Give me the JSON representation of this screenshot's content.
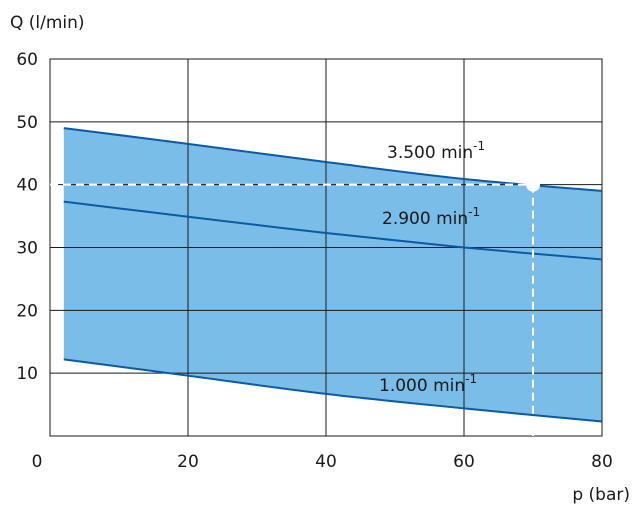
{
  "chart_data": {
    "type": "area",
    "xlabel": "p (bar)",
    "ylabel": "Q (l/min)",
    "xlim": [
      0,
      80
    ],
    "ylim": [
      0,
      60
    ],
    "x_ticks": [
      "0",
      "20",
      "40",
      "60",
      "80"
    ],
    "y_ticks": [
      "10",
      "20",
      "30",
      "40",
      "50",
      "60"
    ],
    "grid": true,
    "series": [
      {
        "name": "3.500 min-1",
        "label_main": "3.500 min",
        "label_sup": "-1",
        "x": [
          2,
          20,
          40,
          60,
          80
        ],
        "y": [
          49,
          46.5,
          43.6,
          40.9,
          39
        ]
      },
      {
        "name": "2.900 min-1",
        "label_main": "2.900 min",
        "label_sup": "-1",
        "x": [
          2,
          20,
          40,
          60,
          80
        ],
        "y": [
          37.3,
          34.9,
          32.3,
          30,
          28.1
        ]
      },
      {
        "name": "1.000 min-1",
        "label_main": "1.000 min",
        "label_sup": "-1",
        "x": [
          2,
          20,
          40,
          60,
          80
        ],
        "y": [
          12.2,
          9.6,
          6.7,
          4.4,
          2.3
        ]
      }
    ],
    "marker": {
      "x": 70,
      "y": 40
    },
    "colors": {
      "fill": "#7bbde9",
      "line": "#0a5aa5",
      "grid": "#1a1a1a",
      "reference": "#ffffff"
    }
  }
}
